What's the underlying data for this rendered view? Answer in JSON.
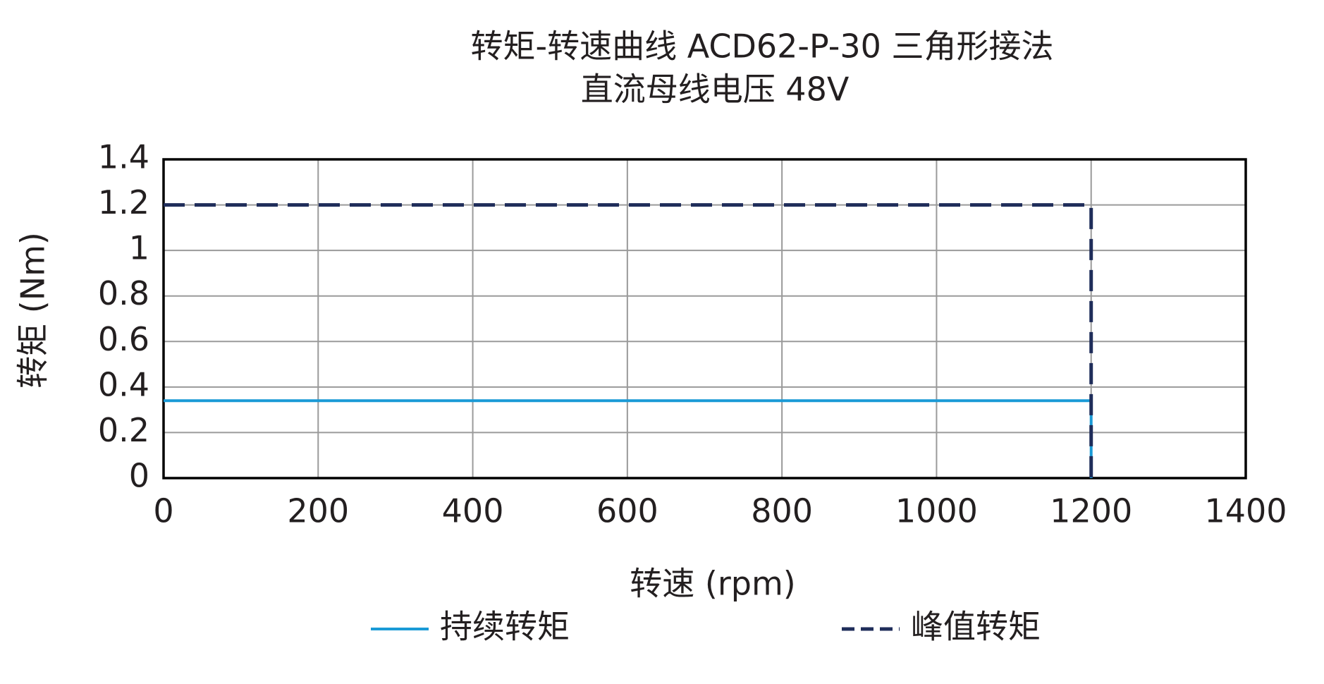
{
  "chart_data": {
    "type": "line",
    "title": "转矩-转速曲线 ACD62-P-30 三角形接法",
    "subtitle": "直流母线电压 48V",
    "x_label": "转速 (rpm)",
    "y_label": "转矩 (Nm)",
    "series": [
      {
        "name": "持续转矩",
        "color": "#1a9ad6",
        "dash": false,
        "x": [
          0,
          1200,
          1200
        ],
        "values": [
          0.34,
          0.34,
          0
        ]
      },
      {
        "name": "峰值转矩",
        "color": "#1f2d5a",
        "dash": true,
        "x": [
          0,
          1200,
          1200
        ],
        "values": [
          1.2,
          1.2,
          0
        ]
      }
    ],
    "xlim": [
      0,
      1400
    ],
    "xticks": [
      0,
      200,
      400,
      600,
      800,
      1000,
      1200,
      1400
    ],
    "ylim": [
      0,
      1.4
    ],
    "yticks": [
      0,
      0.2,
      0.4,
      0.6,
      0.8,
      1,
      1.2,
      1.4
    ],
    "grid": true,
    "legend": "bottom"
  }
}
